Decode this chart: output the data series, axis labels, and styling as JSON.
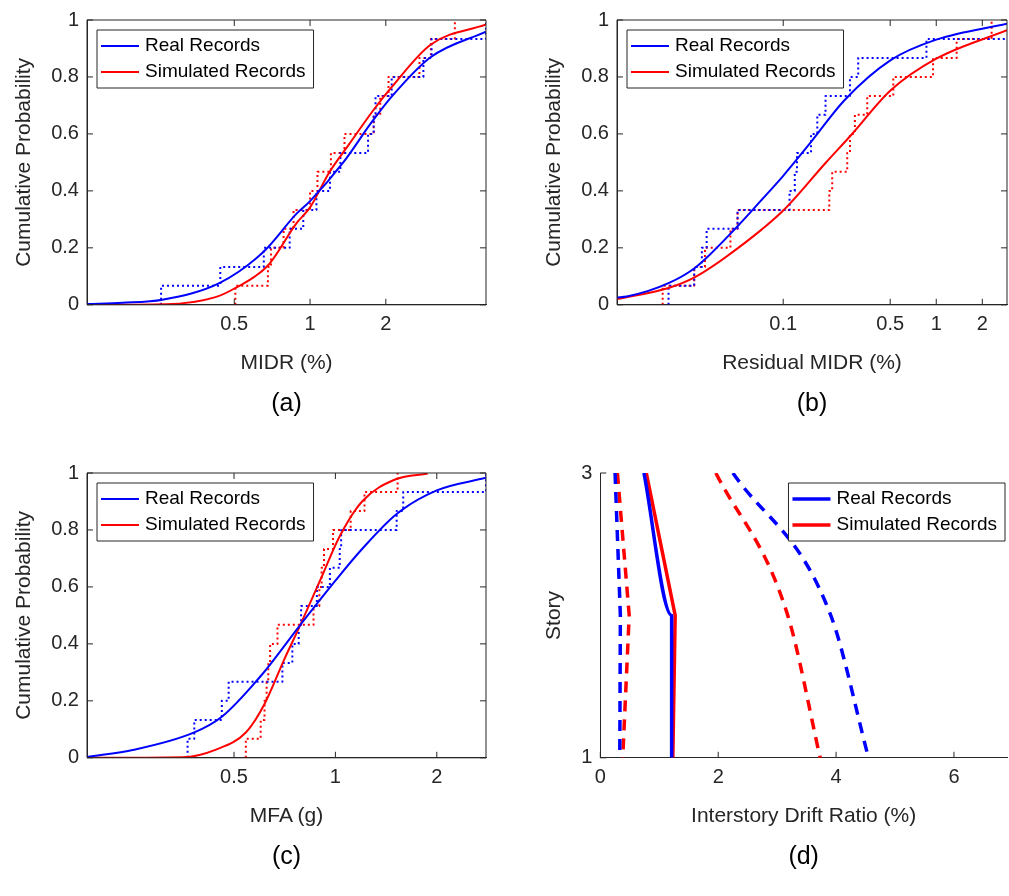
{
  "chart_data": [
    {
      "type": "line",
      "xlabel": "MIDR (%)",
      "ylabel": "Cumulative Probability",
      "annotations": [
        "(a)"
      ],
      "log": "x",
      "grid": false,
      "legend": "top left",
      "xlim": [
        0.13,
        5
      ],
      "xticks": [
        0.5,
        1,
        2
      ],
      "ylim": [
        0,
        1
      ],
      "yticks": [
        0,
        0.2,
        0.4,
        0.6,
        0.8,
        1
      ],
      "series": [
        {
          "type": "line",
          "name": "Real Records",
          "color": "#0000ff",
          "line_style": "solid",
          "x": [
            0.13,
            0.18,
            0.259,
            0.44,
            0.655,
            0.884,
            1,
            1.35,
            1.76,
            2.11,
            3.02,
            5
          ],
          "values": [
            0.003,
            0.007,
            0.018,
            0.078,
            0.187,
            0.32,
            0.364,
            0.498,
            0.642,
            0.731,
            0.87,
            0.959
          ]
        },
        {
          "type": "line",
          "name": "Simulated Records",
          "color": "#ff0000",
          "line_style": "solid",
          "x": [
            0.13,
            0.267,
            0.418,
            0.505,
            0.679,
            0.884,
            1,
            1.19,
            1.43,
            1.76,
            2.11,
            3.02,
            5
          ],
          "values": [
            0,
            0.002,
            0.026,
            0.059,
            0.137,
            0.287,
            0.342,
            0.464,
            0.564,
            0.676,
            0.764,
            0.914,
            0.984
          ]
        },
        {
          "type": "step",
          "color": "#0000ff",
          "line_style": "dotted",
          "x": [
            0.256,
            0.256,
            0.44,
            0.655,
            0.83,
            0.94,
            1.06,
            1.2,
            1.32,
            1.7,
            1.79,
            1.82,
            2.11,
            2.82,
            3.04,
            5
          ],
          "values": [
            0,
            0.067,
            0.133,
            0.2,
            0.267,
            0.333,
            0.4,
            0.467,
            0.533,
            0.6,
            0.667,
            0.733,
            0.8,
            0.867,
            0.933,
            1
          ]
        },
        {
          "type": "step",
          "color": "#ff0000",
          "line_style": "dotted",
          "x": [
            0.505,
            0.505,
            0.68,
            0.7,
            0.785,
            0.86,
            1,
            1.07,
            1.21,
            1.37,
            1.79,
            1.9,
            2.05,
            2.72,
            3.02,
            3.76
          ],
          "values": [
            0,
            0.067,
            0.133,
            0.2,
            0.267,
            0.333,
            0.4,
            0.467,
            0.533,
            0.6,
            0.667,
            0.733,
            0.8,
            0.867,
            0.933,
            1
          ]
        }
      ]
    },
    {
      "type": "line",
      "xlabel": "Residual MIDR (%)",
      "ylabel": "Cumulative Probability",
      "annotations": [
        "(b)"
      ],
      "log": "x",
      "grid": false,
      "legend": "top left",
      "xlim": [
        0.0082,
        2.9
      ],
      "xticks": [
        0.1,
        0.5,
        1,
        2
      ],
      "ylim": [
        0,
        1
      ],
      "yticks": [
        0,
        0.2,
        0.4,
        0.6,
        0.8,
        1
      ],
      "series": [
        {
          "type": "line",
          "name": "Real Records",
          "color": "#0000ff",
          "line_style": "solid",
          "x": [
            0.0082,
            0.0095,
            0.0178,
            0.0267,
            0.0503,
            0.071,
            0.1,
            0.148,
            0.253,
            0.504,
            1,
            2.9
          ],
          "values": [
            0.026,
            0.029,
            0.076,
            0.131,
            0.276,
            0.364,
            0.453,
            0.564,
            0.72,
            0.859,
            0.931,
            0.987
          ]
        },
        {
          "type": "line",
          "name": "Simulated Records",
          "color": "#ff0000",
          "line_style": "solid",
          "x": [
            0.0082,
            0.0178,
            0.0267,
            0.0503,
            0.1,
            0.189,
            0.28,
            0.504,
            1,
            2.9
          ],
          "values": [
            0.02,
            0.059,
            0.098,
            0.198,
            0.331,
            0.498,
            0.598,
            0.753,
            0.864,
            0.964
          ]
        },
        {
          "type": "step",
          "color": "#0000ff",
          "line_style": "dotted",
          "x": [
            0.0178,
            0.0178,
            0.0262,
            0.0294,
            0.0316,
            0.0503,
            0.11,
            0.119,
            0.123,
            0.152,
            0.167,
            0.189,
            0.273,
            0.309,
            0.863,
            2.9
          ],
          "values": [
            0,
            0.067,
            0.133,
            0.2,
            0.267,
            0.333,
            0.4,
            0.467,
            0.533,
            0.6,
            0.667,
            0.733,
            0.8,
            0.867,
            0.933,
            0.933
          ]
        },
        {
          "type": "step",
          "color": "#ff0000",
          "line_style": "dotted",
          "x": [
            0.0163,
            0.0163,
            0.0262,
            0.0308,
            0.0452,
            0.0503,
            0.2,
            0.209,
            0.262,
            0.273,
            0.294,
            0.354,
            0.524,
            0.953,
            1.36,
            2.3
          ],
          "values": [
            0,
            0.067,
            0.133,
            0.2,
            0.267,
            0.333,
            0.4,
            0.467,
            0.533,
            0.6,
            0.667,
            0.733,
            0.8,
            0.867,
            0.933,
            1
          ]
        }
      ]
    },
    {
      "type": "line",
      "xlabel": "MFA (g)",
      "ylabel": "Cumulative Probability",
      "annotations": [
        "(c)"
      ],
      "log": "x",
      "grid": false,
      "legend": "top left",
      "xlim": [
        0.183,
        2.8
      ],
      "xticks": [
        0.5,
        1,
        2
      ],
      "ylim": [
        0,
        1
      ],
      "yticks": [
        0,
        0.2,
        0.4,
        0.6,
        0.8,
        1
      ],
      "series": [
        {
          "type": "line",
          "name": "Real Records",
          "color": "#0000ff",
          "line_style": "solid",
          "x": [
            0.183,
            0.252,
            0.381,
            0.46,
            0.602,
            0.787,
            1,
            1.2,
            1.52,
            2,
            2.8
          ],
          "values": [
            0.003,
            0.028,
            0.089,
            0.144,
            0.289,
            0.467,
            0.622,
            0.733,
            0.856,
            0.939,
            0.983
          ]
        },
        {
          "type": "line",
          "name": "Simulated Records",
          "color": "#ff0000",
          "line_style": "solid",
          "x": [
            0.183,
            0.352,
            0.44,
            0.542,
            0.616,
            0.704,
            0.787,
            0.9,
            1.03,
            1.2,
            1.51,
            1.88
          ],
          "values": [
            0,
            0.002,
            0.028,
            0.089,
            0.189,
            0.344,
            0.467,
            0.622,
            0.778,
            0.9,
            0.978,
            0.998
          ]
        },
        {
          "type": "step",
          "color": "#0000ff",
          "line_style": "dotted",
          "x": [
            0.364,
            0.364,
            0.381,
            0.46,
            0.482,
            0.696,
            0.745,
            0.778,
            0.791,
            0.881,
            0.963,
            1.03,
            1.04,
            1.52,
            1.59,
            2.8
          ],
          "values": [
            0,
            0.067,
            0.133,
            0.2,
            0.267,
            0.333,
            0.4,
            0.467,
            0.533,
            0.6,
            0.667,
            0.733,
            0.8,
            0.867,
            0.933,
            1
          ]
        },
        {
          "type": "step",
          "color": "#ff0000",
          "line_style": "dotted",
          "x": [
            0.542,
            0.542,
            0.6,
            0.616,
            0.625,
            0.632,
            0.64,
            0.673,
            0.861,
            0.896,
            0.91,
            0.925,
            0.984,
            1.11,
            1.22,
            1.53
          ],
          "values": [
            0,
            0.067,
            0.133,
            0.2,
            0.267,
            0.333,
            0.4,
            0.467,
            0.533,
            0.6,
            0.667,
            0.733,
            0.8,
            0.867,
            0.933,
            1
          ]
        }
      ]
    },
    {
      "type": "line",
      "xlabel": "Interstory Drift Ratio (%)",
      "ylabel": "Story",
      "annotations": [
        "(d)"
      ],
      "grid": false,
      "legend": "top right",
      "xlim": [
        0,
        6.9
      ],
      "xticks": [
        0,
        2,
        4,
        6
      ],
      "ylim": [
        1,
        3
      ],
      "yticks": [
        1,
        3
      ],
      "series": [
        {
          "type": "line",
          "name": "Real Records",
          "color": "#0000ff",
          "line_style": "solid",
          "x": [
            0.74,
            1.21,
            1.21
          ],
          "values": [
            3,
            2,
            1
          ]
        },
        {
          "type": "line",
          "name": "Simulated Records",
          "color": "#ff0000",
          "line_style": "solid",
          "x": [
            0.78,
            1.27,
            1.23
          ],
          "values": [
            3,
            2,
            1
          ]
        },
        {
          "type": "line",
          "color": "#0000ff",
          "line_style": "dashed",
          "x": [
            0.25,
            0.34,
            0.33
          ],
          "values": [
            3,
            2,
            1
          ]
        },
        {
          "type": "line",
          "color": "#ff0000",
          "line_style": "dashed",
          "x": [
            0.29,
            0.49,
            0.38
          ],
          "values": [
            3,
            2,
            1
          ]
        },
        {
          "type": "line",
          "color": "#0000ff",
          "line_style": "dashed",
          "x": [
            2.25,
            3.91,
            4.55
          ],
          "values": [
            3,
            2,
            1
          ]
        },
        {
          "type": "line",
          "color": "#ff0000",
          "line_style": "dashed",
          "x": [
            1.96,
            3.18,
            3.73
          ],
          "values": [
            3,
            2,
            1
          ]
        }
      ]
    }
  ]
}
